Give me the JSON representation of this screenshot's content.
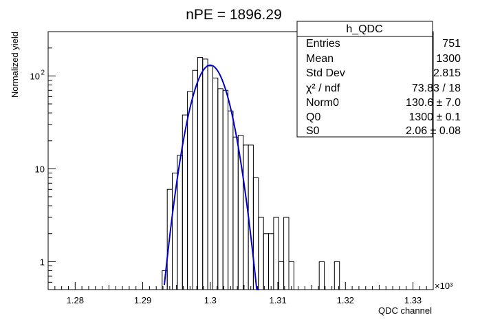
{
  "chart_data": {
    "type": "histogram",
    "title": "nPE = 1896.29",
    "xlabel": "QDC channel",
    "ylabel": "Normalized yield",
    "x_multiplier_label": "×10³",
    "xlim": [
      1276,
      1333
    ],
    "ylim": [
      0.5,
      300
    ],
    "y_scale": "log",
    "grid": false,
    "x_ticks": [
      {
        "value": 1280,
        "label": "1.28"
      },
      {
        "value": 1290,
        "label": "1.29"
      },
      {
        "value": 1300,
        "label": "1.3"
      },
      {
        "value": 1310,
        "label": "1.31"
      },
      {
        "value": 1320,
        "label": "1.32"
      },
      {
        "value": 1330,
        "label": "1.33"
      }
    ],
    "y_ticks": [
      {
        "value": 1,
        "label": "1",
        "exp": ""
      },
      {
        "value": 10,
        "label": "10",
        "exp": ""
      },
      {
        "value": 100,
        "label": "10",
        "exp": "2"
      }
    ],
    "bin_width": 0.75,
    "bins": [
      {
        "x": 1293.25,
        "y": 0.8
      },
      {
        "x": 1294.0,
        "y": 6.0
      },
      {
        "x": 1294.75,
        "y": 9.0
      },
      {
        "x": 1295.5,
        "y": 14.0
      },
      {
        "x": 1296.25,
        "y": 38.0
      },
      {
        "x": 1297.0,
        "y": 68.0
      },
      {
        "x": 1297.75,
        "y": 115.0
      },
      {
        "x": 1298.5,
        "y": 158.0
      },
      {
        "x": 1299.25,
        "y": 152.0
      },
      {
        "x": 1300.0,
        "y": 128.0
      },
      {
        "x": 1300.75,
        "y": 95.0
      },
      {
        "x": 1301.5,
        "y": 73.0
      },
      {
        "x": 1302.25,
        "y": 70.0
      },
      {
        "x": 1303.0,
        "y": 42.0
      },
      {
        "x": 1303.75,
        "y": 22.0
      },
      {
        "x": 1304.5,
        "y": 23.0
      },
      {
        "x": 1305.25,
        "y": 18.0
      },
      {
        "x": 1306.0,
        "y": 18.0
      },
      {
        "x": 1306.75,
        "y": 8.0
      },
      {
        "x": 1307.5,
        "y": 3.0
      },
      {
        "x": 1308.25,
        "y": 2.0
      },
      {
        "x": 1309.0,
        "y": 2.0
      },
      {
        "x": 1309.75,
        "y": 3.0
      },
      {
        "x": 1310.5,
        "y": 1.0
      },
      {
        "x": 1311.25,
        "y": 3.0
      },
      {
        "x": 1312.0,
        "y": 1.0
      },
      {
        "x": 1312.75,
        "y": 0.5
      },
      {
        "x": 1316.5,
        "y": 1.0
      },
      {
        "x": 1318.75,
        "y": 1.0
      }
    ],
    "fit": {
      "type": "gaussian",
      "norm": 130.6,
      "mean": 1300.0,
      "sigma": 2.06,
      "x_range": [
        1293.2,
        1307.2
      ],
      "color": "#0000cc"
    },
    "stats_box": {
      "title": "h_QDC",
      "rows": [
        {
          "label": "Entries",
          "value": "751"
        },
        {
          "label": "Mean",
          "value": "1300"
        },
        {
          "label": "Std Dev",
          "value": "2.815"
        },
        {
          "label": "χ² / ndf",
          "value": "73.83 / 18"
        },
        {
          "label": "Norm0",
          "value": "130.6 ± 7.0"
        },
        {
          "label": "Q0",
          "value": "1300 ± 0.1"
        },
        {
          "label": "S0",
          "value": "2.06 ± 0.08"
        }
      ]
    }
  }
}
